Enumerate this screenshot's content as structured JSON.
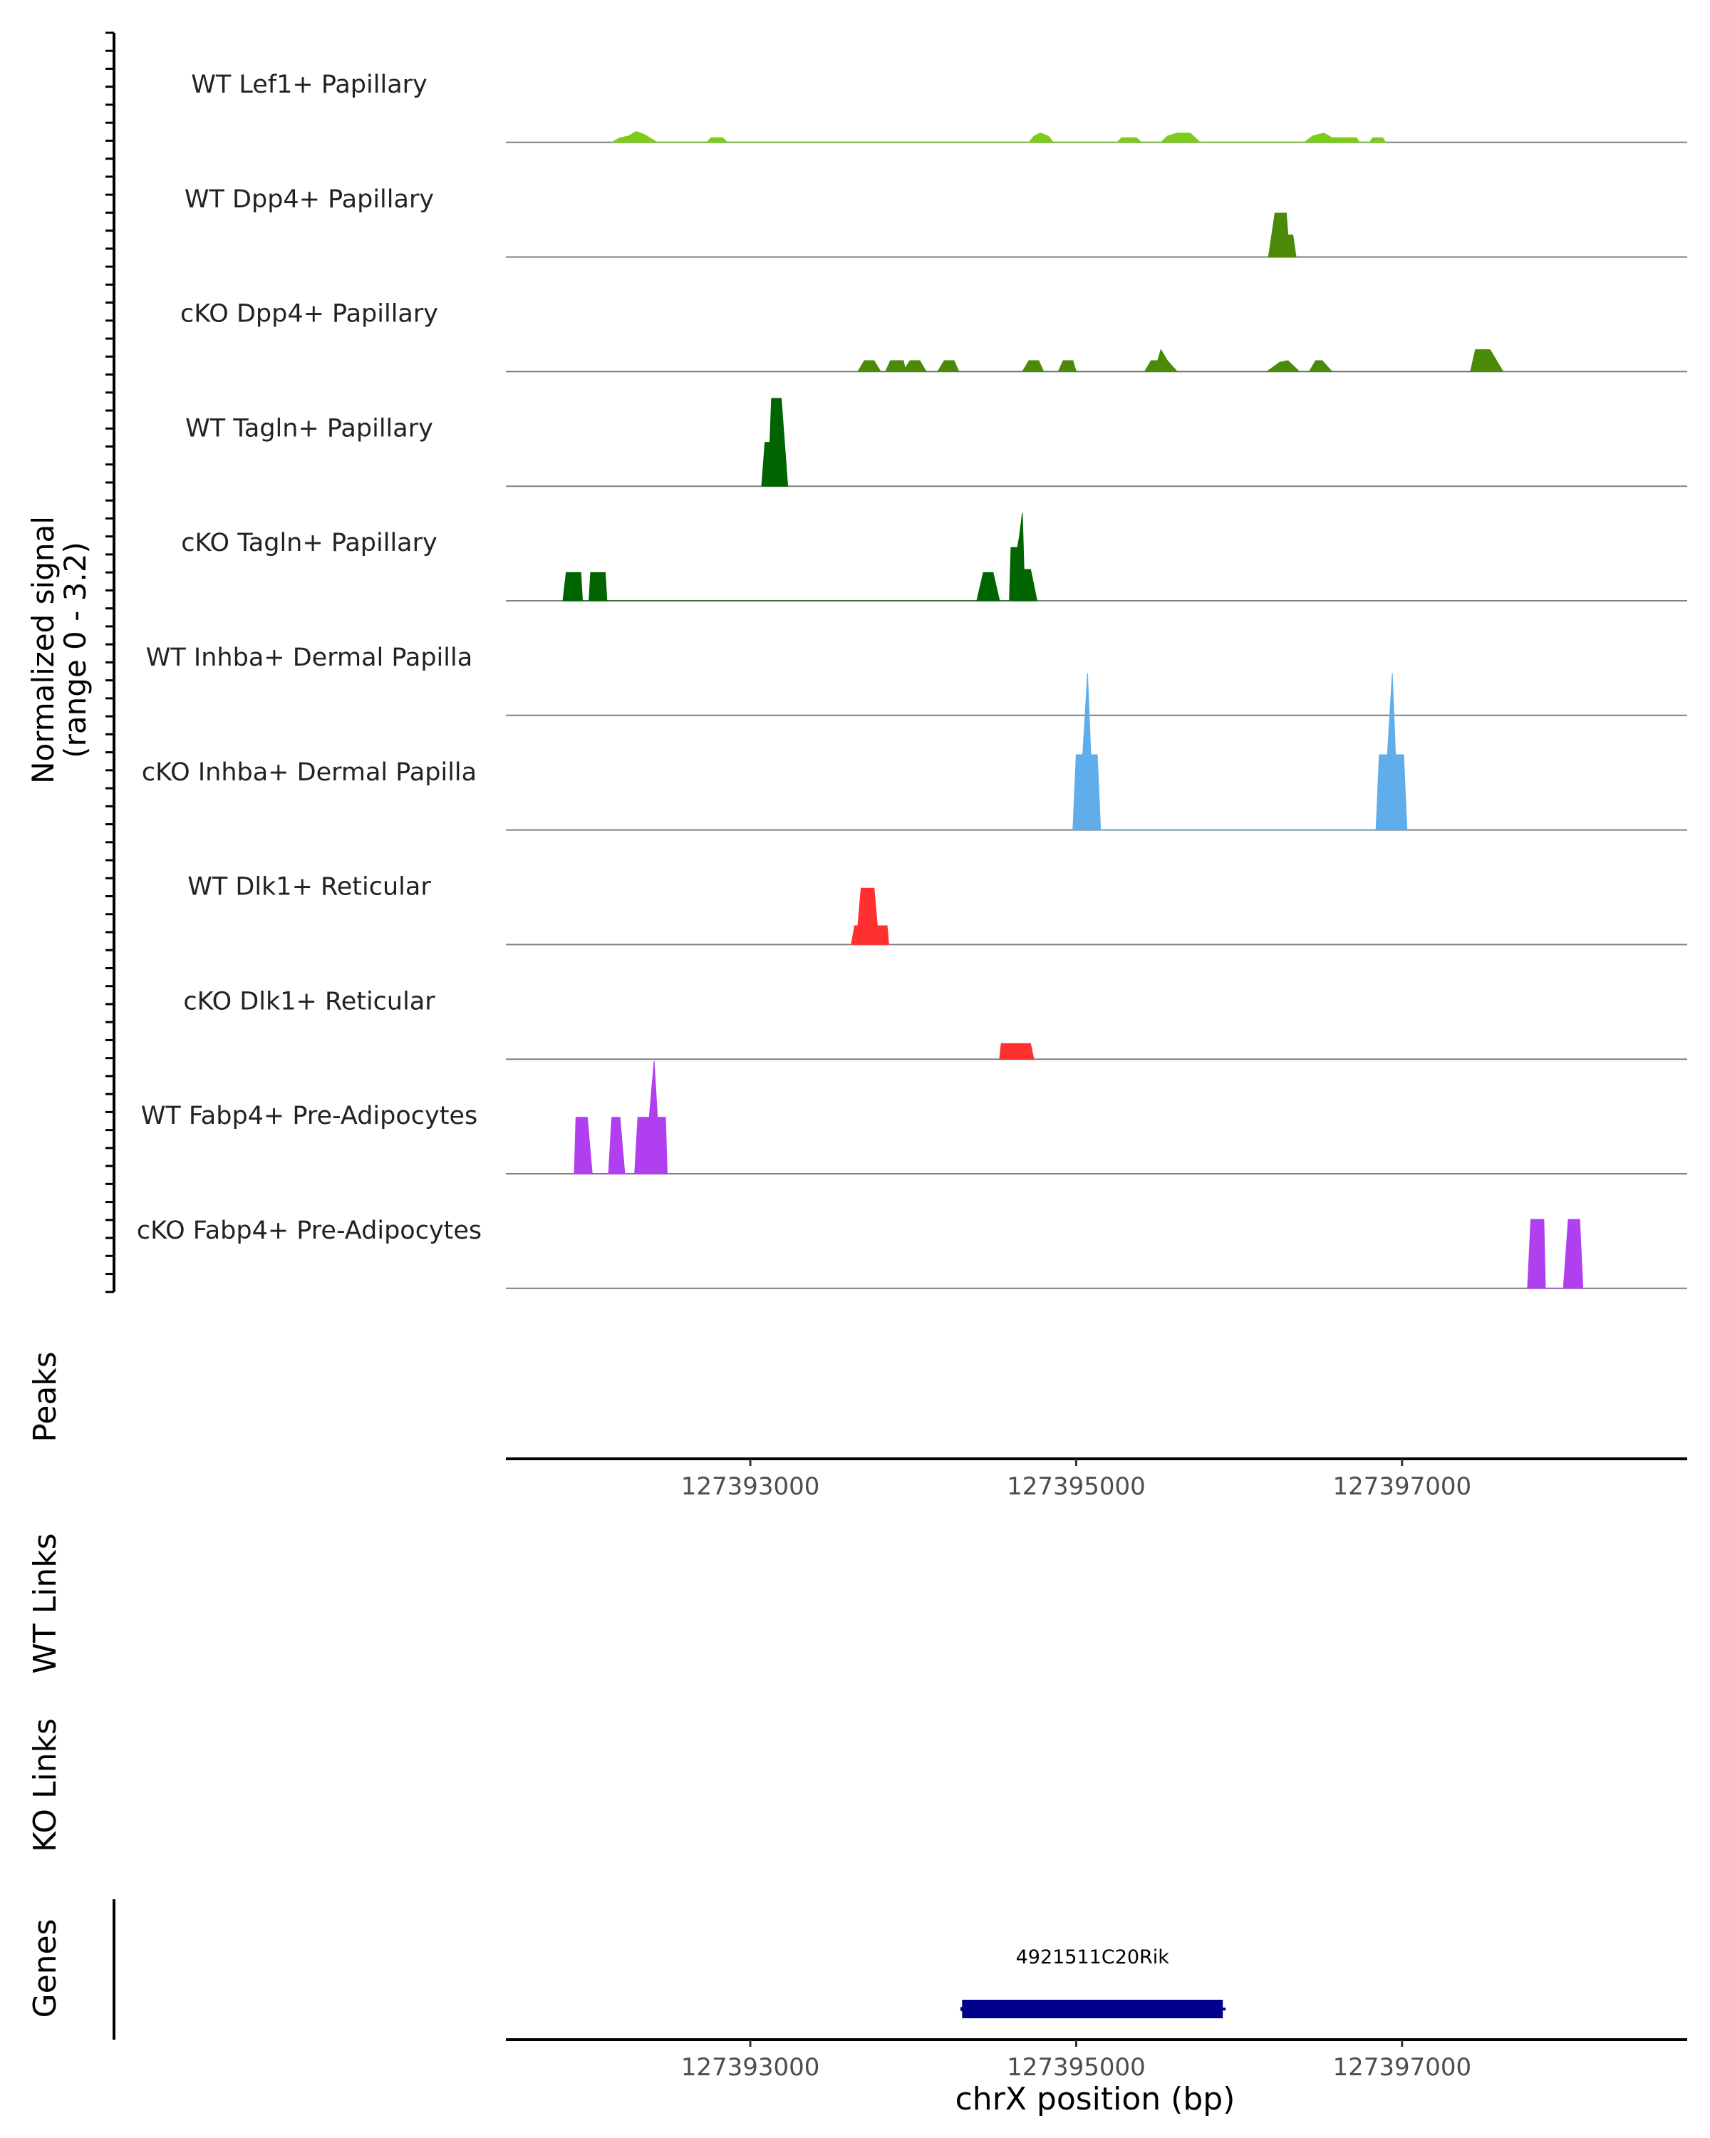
{
  "chart_data": {
    "type": "coverage",
    "x_range": [
      127391500,
      127398750
    ],
    "signal_range": [
      0,
      3.2
    ],
    "y_axis_label_line1": "Normalized signal",
    "y_axis_label_line2": "(range 0 - 3.2)",
    "x_axis_label": "chrX position (bp)",
    "x_ticks": [
      {
        "value": 127393000,
        "label": "127393000"
      },
      {
        "value": 127395000,
        "label": "127395000"
      },
      {
        "value": 127397000,
        "label": "127397000"
      }
    ],
    "section_labels": {
      "peaks": "Peaks",
      "wt_links": "WT Links",
      "ko_links": "KO Links",
      "genes": "Genes"
    },
    "tracks": [
      {
        "name": "WT Lef1+ Papillary",
        "color": "#7CCD1A",
        "points": [
          [
            127392150,
            0
          ],
          [
            127392200,
            0.15
          ],
          [
            127392250,
            0.2
          ],
          [
            127392300,
            0.35
          ],
          [
            127392350,
            0.25
          ],
          [
            127392430,
            0
          ],
          [
            127392730,
            0
          ],
          [
            127392760,
            0.15
          ],
          [
            127392830,
            0.15
          ],
          [
            127392860,
            0
          ],
          [
            127394710,
            0
          ],
          [
            127394740,
            0.2
          ],
          [
            127394780,
            0.3
          ],
          [
            127394830,
            0.2
          ],
          [
            127394860,
            0
          ],
          [
            127395250,
            0
          ],
          [
            127395280,
            0.15
          ],
          [
            127395370,
            0.15
          ],
          [
            127395400,
            0
          ],
          [
            127395520,
            0
          ],
          [
            127395560,
            0.2
          ],
          [
            127395620,
            0.3
          ],
          [
            127395700,
            0.3
          ],
          [
            127395760,
            0
          ],
          [
            127396400,
            0
          ],
          [
            127396450,
            0.2
          ],
          [
            127396520,
            0.3
          ],
          [
            127396570,
            0.15
          ],
          [
            127396720,
            0.15
          ],
          [
            127396740,
            0
          ],
          [
            127396800,
            0
          ],
          [
            127396820,
            0.15
          ],
          [
            127396880,
            0.15
          ],
          [
            127396900,
            0
          ]
        ]
      },
      {
        "name": "WT Dpp4+ Papillary",
        "color": "#4A8A08",
        "points": [
          [
            127396180,
            0
          ],
          [
            127396220,
            1.4
          ],
          [
            127396290,
            1.4
          ],
          [
            127396300,
            0.7
          ],
          [
            127396330,
            0.7
          ],
          [
            127396350,
            0
          ]
        ]
      },
      {
        "name": "cKO Dpp4+ Papillary",
        "color": "#4A8A08",
        "points": [
          [
            127393660,
            0
          ],
          [
            127393700,
            0.35
          ],
          [
            127393760,
            0.35
          ],
          [
            127393800,
            0
          ],
          [
            127393830,
            0
          ],
          [
            127393860,
            0.35
          ],
          [
            127393940,
            0.35
          ],
          [
            127393950,
            0.1
          ],
          [
            127393980,
            0.35
          ],
          [
            127394040,
            0.35
          ],
          [
            127394080,
            0
          ],
          [
            127394150,
            0
          ],
          [
            127394190,
            0.35
          ],
          [
            127394250,
            0.35
          ],
          [
            127394280,
            0
          ],
          [
            127394670,
            0
          ],
          [
            127394710,
            0.35
          ],
          [
            127394770,
            0.35
          ],
          [
            127394800,
            0
          ],
          [
            127394890,
            0
          ],
          [
            127394920,
            0.35
          ],
          [
            127394980,
            0.35
          ],
          [
            127395000,
            0
          ],
          [
            127395420,
            0
          ],
          [
            127395460,
            0.35
          ],
          [
            127395500,
            0.35
          ],
          [
            127395520,
            0.7
          ],
          [
            127395560,
            0.35
          ],
          [
            127395620,
            0
          ],
          [
            127396170,
            0
          ],
          [
            127396250,
            0.3
          ],
          [
            127396300,
            0.35
          ],
          [
            127396370,
            0
          ],
          [
            127396430,
            0
          ],
          [
            127396470,
            0.35
          ],
          [
            127396510,
            0.35
          ],
          [
            127396570,
            0
          ],
          [
            127397420,
            0
          ],
          [
            127397450,
            0.7
          ],
          [
            127397500,
            0.7
          ],
          [
            127397540,
            0.7
          ],
          [
            127397620,
            0
          ]
        ]
      },
      {
        "name": "WT Tagln+ Papillary",
        "color": "#006400",
        "points": [
          [
            127393070,
            0
          ],
          [
            127393090,
            1.4
          ],
          [
            127393120,
            1.4
          ],
          [
            127393130,
            2.8
          ],
          [
            127393190,
            2.8
          ],
          [
            127393230,
            0
          ]
        ]
      },
      {
        "name": "cKO Tagln+ Papillary",
        "color": "#006400",
        "points": [
          [
            127391850,
            0
          ],
          [
            127391870,
            0.9
          ],
          [
            127391960,
            0.9
          ],
          [
            127391970,
            0
          ],
          [
            127392010,
            0
          ],
          [
            127392020,
            0.9
          ],
          [
            127392110,
            0.9
          ],
          [
            127392120,
            0
          ],
          [
            127394390,
            0
          ],
          [
            127394430,
            0.9
          ],
          [
            127394490,
            0.9
          ],
          [
            127394530,
            0
          ],
          [
            127394590,
            0
          ],
          [
            127394600,
            1.7
          ],
          [
            127394640,
            1.7
          ],
          [
            127394650,
            2.0
          ],
          [
            127394670,
            2.8
          ],
          [
            127394680,
            1.0
          ],
          [
            127394720,
            1.0
          ],
          [
            127394760,
            0
          ]
        ]
      },
      {
        "name": "WT Inhba+ Dermal Papilla",
        "color": "#5FAEEB",
        "points": []
      },
      {
        "name": "cKO Inhba+ Dermal Papilla",
        "color": "#5FAEEB",
        "points": [
          [
            127394980,
            0
          ],
          [
            127395000,
            2.4
          ],
          [
            127395040,
            2.4
          ],
          [
            127395070,
            5.0
          ],
          [
            127395090,
            2.4
          ],
          [
            127395130,
            2.4
          ],
          [
            127395150,
            0
          ],
          [
            127396840,
            0
          ],
          [
            127396860,
            2.4
          ],
          [
            127396910,
            2.4
          ],
          [
            127396940,
            5.0
          ],
          [
            127396960,
            2.4
          ],
          [
            127397010,
            2.4
          ],
          [
            127397030,
            0
          ]
        ]
      },
      {
        "name": "WT Dlk1+ Reticular",
        "color": "#FF3030",
        "points": [
          [
            127393620,
            0
          ],
          [
            127393640,
            0.6
          ],
          [
            127393660,
            0.6
          ],
          [
            127393680,
            1.8
          ],
          [
            127393760,
            1.8
          ],
          [
            127393780,
            0.6
          ],
          [
            127393840,
            0.6
          ],
          [
            127393850,
            0
          ]
        ]
      },
      {
        "name": "cKO Dlk1+ Reticular",
        "color": "#FF3030",
        "points": [
          [
            127394530,
            0
          ],
          [
            127394540,
            0.5
          ],
          [
            127394720,
            0.5
          ],
          [
            127394740,
            0
          ]
        ]
      },
      {
        "name": "WT Fabp4+ Pre-Adipocytes",
        "color": "#B03FEF",
        "points": [
          [
            127391920,
            0
          ],
          [
            127391930,
            1.8
          ],
          [
            127392000,
            1.8
          ],
          [
            127392030,
            0
          ],
          [
            127392130,
            0
          ],
          [
            127392150,
            1.8
          ],
          [
            127392200,
            1.8
          ],
          [
            127392230,
            0
          ],
          [
            127392290,
            0
          ],
          [
            127392310,
            1.8
          ],
          [
            127392380,
            1.8
          ],
          [
            127392410,
            3.6
          ],
          [
            127392430,
            1.8
          ],
          [
            127392480,
            1.8
          ],
          [
            127392490,
            0
          ]
        ]
      },
      {
        "name": "cKO Fabp4+ Pre-Adipocytes",
        "color": "#B03FEF",
        "points": [
          [
            127397770,
            0
          ],
          [
            127397790,
            2.2
          ],
          [
            127397870,
            2.2
          ],
          [
            127397880,
            0
          ],
          [
            127397990,
            0
          ],
          [
            127398020,
            2.2
          ],
          [
            127398090,
            2.2
          ],
          [
            127398110,
            0
          ]
        ]
      }
    ],
    "gene": {
      "name": "4921511C20Rik",
      "start": 127394300,
      "end": 127395900,
      "strand": "-",
      "color": "#00008B"
    }
  }
}
